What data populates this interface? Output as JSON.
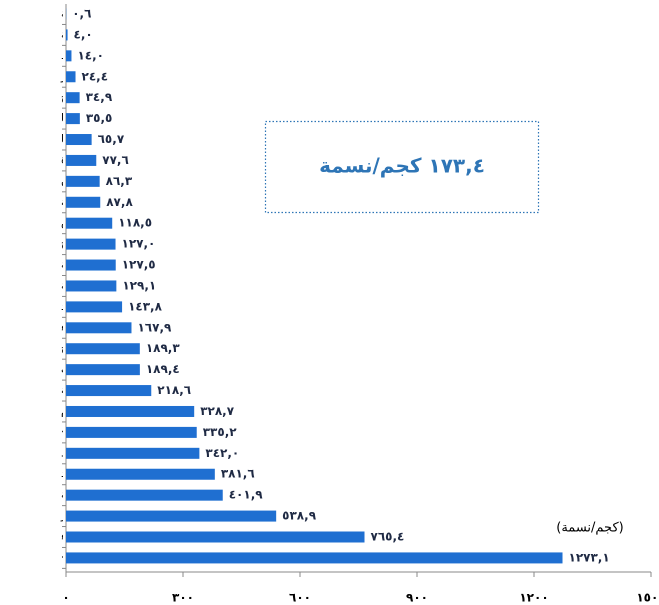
{
  "chart_data": {
    "type": "barh",
    "categories": [
      "الدقهلية",
      "المنوفية",
      "أسيوط",
      "الأقصر",
      "سوهاج",
      "قنا",
      "المنيا",
      "البحيرة",
      "أسوان",
      "الشرقية",
      "السويس",
      "مرسى مطروح",
      "الغربية",
      "القليوبية",
      "الوادي الجديد",
      "شمال سيناء",
      "كفر الشيخ",
      "بني سويف",
      "الإسكندرية",
      "الفيوم",
      "الجيزة❖",
      "دمياط",
      "بورسعيد",
      "الإسماعيلية",
      "البحر الأحمر",
      "جنوب سيناء",
      "القاهرة❖"
    ],
    "values": [
      0.6,
      4.0,
      14.0,
      24.4,
      34.9,
      35.5,
      65.7,
      77.6,
      86.3,
      87.8,
      118.5,
      127.0,
      127.5,
      129.1,
      143.8,
      167.9,
      189.3,
      189.4,
      218.6,
      328.7,
      335.2,
      342.0,
      381.6,
      401.9,
      538.9,
      765.4,
      1273.1
    ],
    "value_labels": [
      "٠,٦",
      "٤,٠",
      "١٤,٠",
      "٢٤,٤",
      "٣٤,٩",
      "٣٥,٥",
      "٦٥,٧",
      "٧٧,٦",
      "٨٦,٣",
      "٨٧,٨",
      "١١٨,٥",
      "١٢٧,٠",
      "١٢٧,٥",
      "١٢٩,١",
      "١٤٣,٨",
      "١٦٧,٩",
      "١٨٩,٣",
      "١٨٩,٤",
      "٢١٨,٦",
      "٣٢٨,٧",
      "٣٣٥,٢",
      "٣٤٢,٠",
      "٣٨١,٦",
      "٤٠١,٩",
      "٥٣٨,٩",
      "٧٦٥,٤",
      "١٢٧٣,١"
    ],
    "color": "#1f6fd1",
    "xlim": [
      0,
      1500
    ],
    "xticks": [
      {
        "value": 0,
        "label": "٠"
      },
      {
        "value": 300,
        "label": "٣٠٠"
      },
      {
        "value": 600,
        "label": "٦٠٠"
      },
      {
        "value": 900,
        "label": "٩٠٠"
      },
      {
        "value": 1200,
        "label": "١٢٠٠"
      },
      {
        "value": 1500,
        "label": "١٥٠٠"
      }
    ],
    "annotation": "١٧٣,٤ كجم/نسمة",
    "unit_label": "(كجم/نسمة)"
  }
}
